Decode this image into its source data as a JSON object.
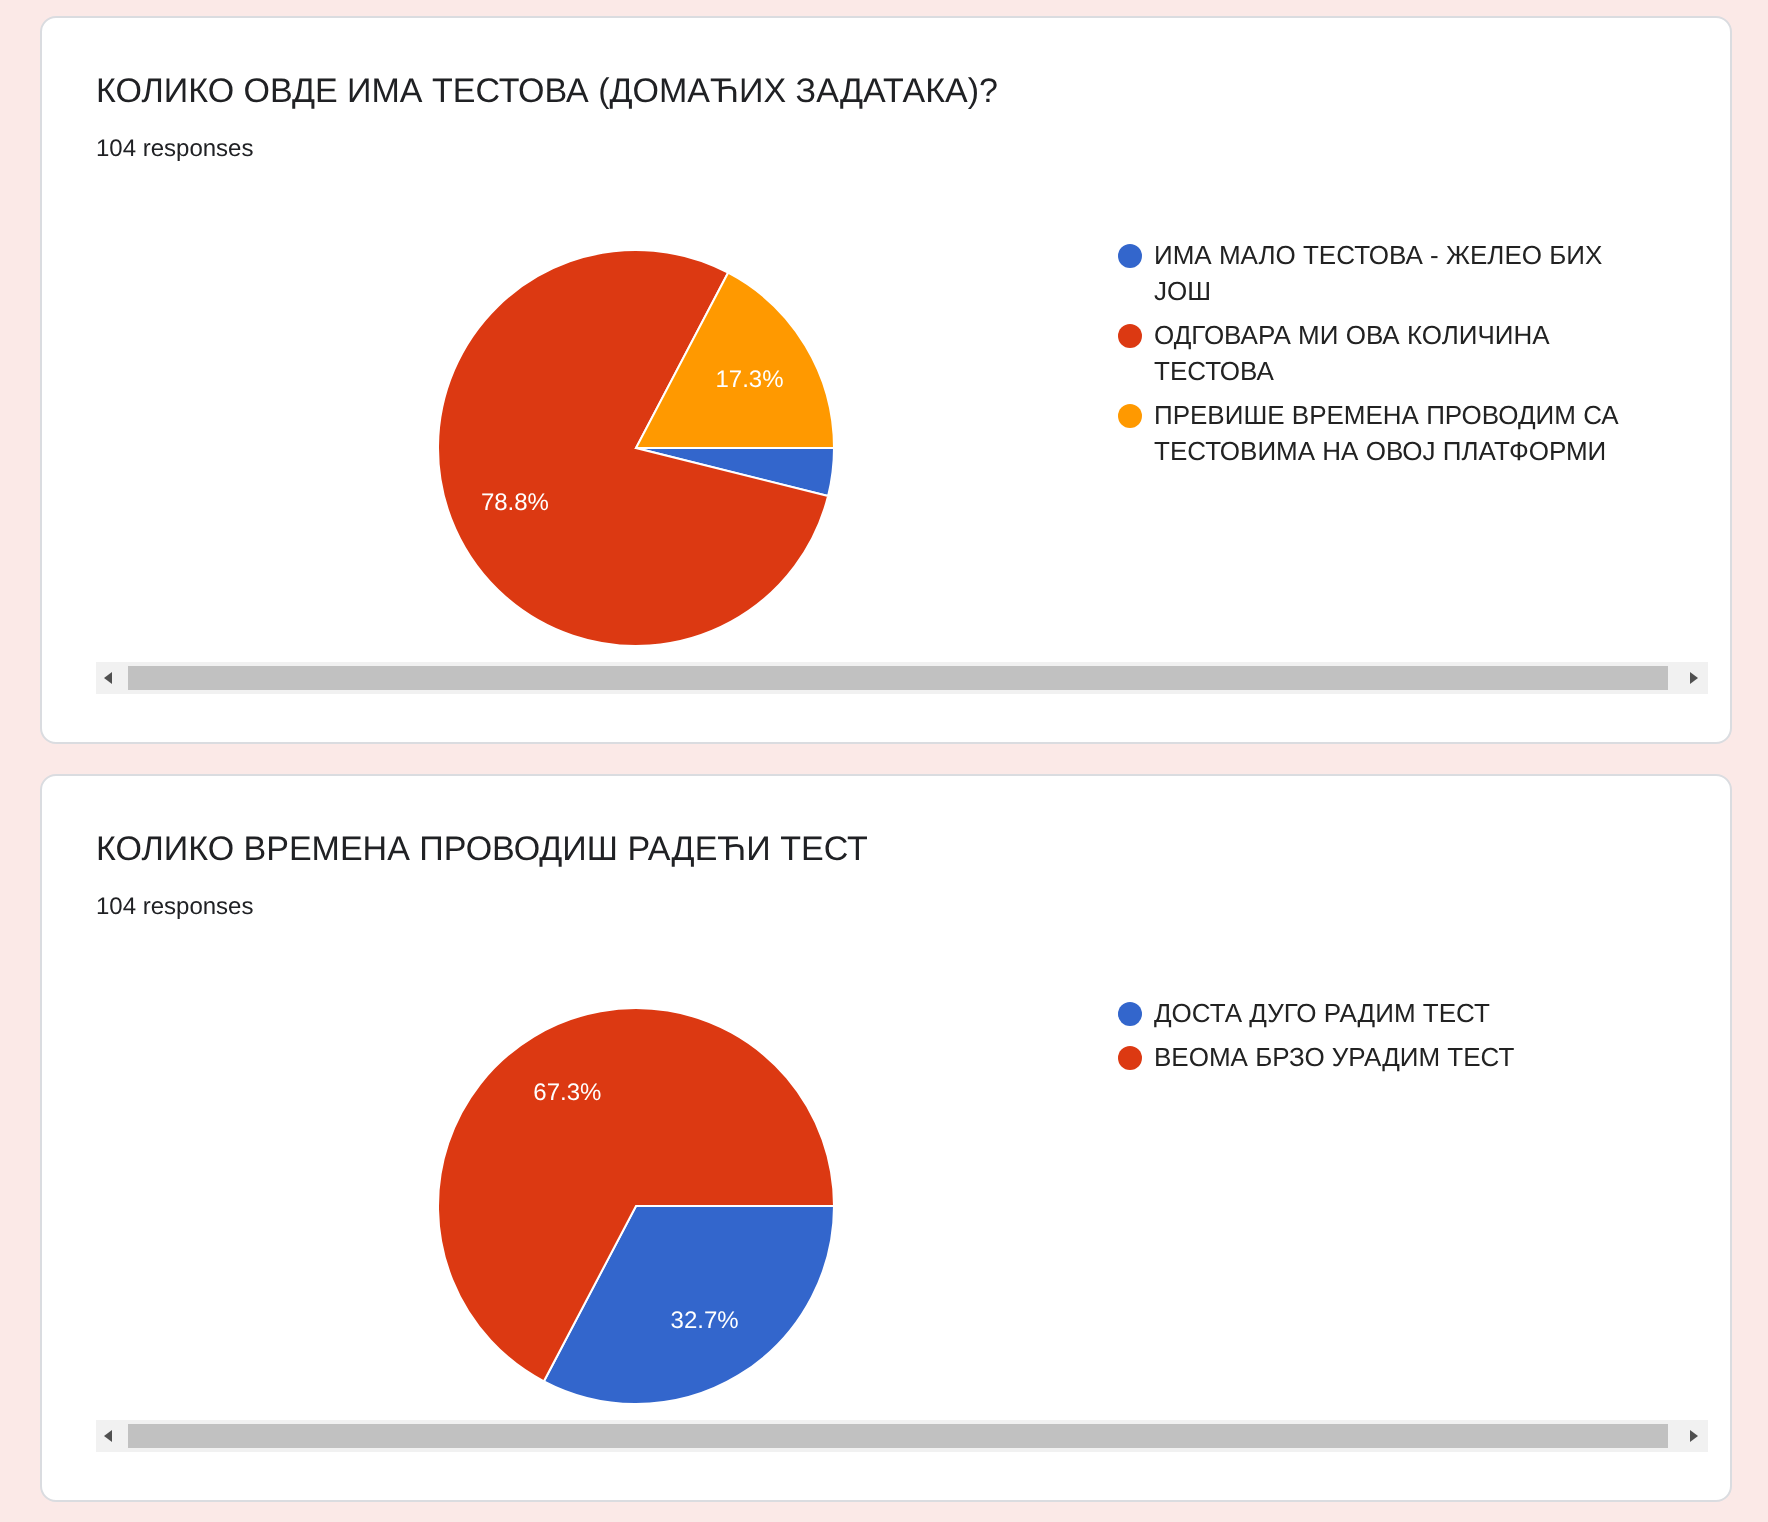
{
  "chart_data": [
    {
      "type": "pie",
      "title": "КОЛИКО ОВДЕ ИМА ТЕСТОВА (ДОМАЋИХ ЗАДАТАКА)?",
      "subtitle": "104 responses",
      "categories": [
        "ИМА МАЛО ТЕСТОВА - ЖЕЛЕО БИХ ЈОШ",
        "ОДГОВАРА МИ ОВА КОЛИЧИНА ТЕСТОВА",
        "ПРЕВИШЕ ВРЕМЕНА ПРОВОДИМ СА ТЕСТОВИМА НА ОВОЈ ПЛАТФОРМИ"
      ],
      "values": [
        3.9,
        78.8,
        17.3
      ],
      "value_labels": [
        null,
        "78.8%",
        "17.3%"
      ],
      "colors": [
        "#3366cc",
        "#dc3912",
        "#ff9900"
      ],
      "legend": "right"
    },
    {
      "type": "pie",
      "title": "КОЛИКО ВРЕМЕНА ПРОВОДИШ РАДЕЋИ ТЕСТ",
      "subtitle": "104 responses",
      "categories": [
        "ДОСТА ДУГО РАДИМ ТЕСТ",
        "ВЕОМА БРЗО УРАДИМ ТЕСТ"
      ],
      "values": [
        32.7,
        67.3
      ],
      "value_labels": [
        "32.7%",
        "67.3%"
      ],
      "colors": [
        "#3366cc",
        "#dc3912"
      ],
      "legend": "right"
    }
  ]
}
